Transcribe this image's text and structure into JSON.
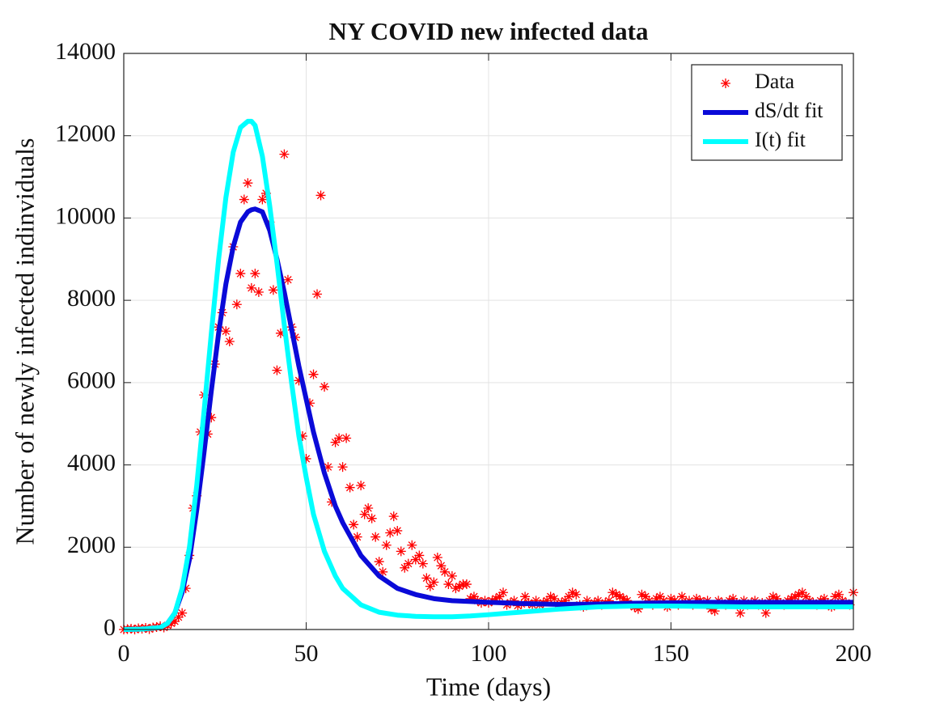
{
  "chart_data": {
    "type": "line",
    "title": "NY COVID new infected data",
    "xlabel": "Time (days)",
    "ylabel": "Number of newly infected indinviduals",
    "xlim": [
      0,
      200
    ],
    "xticks": [
      0,
      50,
      100,
      150,
      200
    ],
    "ylim": [
      0,
      14000
    ],
    "yticks": [
      0,
      2000,
      4000,
      6000,
      8000,
      10000,
      12000,
      14000
    ],
    "grid": true,
    "legend": "upper right",
    "series": [
      {
        "name": "Data",
        "type": "scatter",
        "color": "#ff0000",
        "x": [
          0,
          1,
          2,
          3,
          4,
          5,
          6,
          7,
          8,
          9,
          10,
          11,
          12,
          13,
          14,
          15,
          16,
          17,
          18,
          19,
          20,
          21,
          22,
          23,
          24,
          25,
          26,
          27,
          28,
          29,
          30,
          31,
          32,
          33,
          34,
          35,
          36,
          37,
          38,
          39,
          40,
          41,
          42,
          43,
          44,
          45,
          46,
          47,
          48,
          49,
          50,
          51,
          52,
          53,
          54,
          55,
          56,
          57,
          58,
          59,
          60,
          61,
          62,
          63,
          64,
          65,
          66,
          67,
          68,
          69,
          70,
          71,
          72,
          73,
          74,
          75,
          76,
          77,
          78,
          79,
          80,
          81,
          82,
          83,
          84,
          85,
          86,
          87,
          88,
          89,
          90,
          91,
          92,
          93,
          94,
          95,
          96,
          97,
          98,
          99,
          100,
          101,
          102,
          103,
          104,
          105,
          106,
          107,
          108,
          109,
          110,
          111,
          112,
          113,
          114,
          115,
          116,
          117,
          118,
          119,
          120,
          121,
          122,
          123,
          124,
          125,
          126,
          127,
          128,
          129,
          130,
          131,
          132,
          133,
          134,
          135,
          136,
          137,
          138,
          139,
          140,
          141,
          142,
          143,
          144,
          145,
          146,
          147,
          148,
          149,
          150,
          151,
          152,
          153,
          154,
          155,
          156,
          157,
          158,
          159,
          160,
          161,
          162,
          163,
          164,
          165,
          166,
          167,
          168,
          169,
          170,
          171,
          172,
          173,
          174,
          175,
          176,
          177,
          178,
          179,
          180,
          181,
          182,
          183,
          184,
          185,
          186,
          187,
          188,
          189,
          190,
          191,
          192,
          193,
          194,
          195,
          196,
          197,
          198,
          199,
          200
        ],
        "values": [
          0,
          10,
          20,
          0,
          30,
          20,
          40,
          10,
          50,
          60,
          80,
          50,
          100,
          150,
          200,
          300,
          400,
          1000,
          1800,
          2950,
          3250,
          4800,
          5700,
          4750,
          5150,
          6450,
          7350,
          7700,
          7250,
          7000,
          9300,
          7900,
          8650,
          10450,
          10850,
          8300,
          8650,
          8200,
          10450,
          10600,
          9900,
          8250,
          6300,
          7200,
          11550,
          8500,
          7350,
          7100,
          6050,
          4700,
          4150,
          5500,
          6200,
          8150,
          10550,
          5900,
          3950,
          3100,
          4550,
          4650,
          3950,
          4650,
          3450,
          2550,
          2250,
          3500,
          2800,
          2950,
          2700,
          2250,
          1650,
          1400,
          2050,
          2350,
          2750,
          2400,
          1900,
          1500,
          1600,
          2050,
          1700,
          1800,
          1600,
          1250,
          1050,
          1150,
          1750,
          1550,
          1400,
          1100,
          1300,
          1000,
          1050,
          1100,
          1100,
          750,
          800,
          700,
          650,
          700,
          650,
          700,
          750,
          800,
          900,
          600,
          650,
          700,
          580,
          620,
          800,
          650,
          600,
          700,
          600,
          650,
          700,
          800,
          750,
          600,
          650,
          700,
          800,
          900,
          850,
          600,
          550,
          700,
          600,
          650,
          700,
          600,
          650,
          700,
          900,
          850,
          800,
          750,
          700,
          600,
          550,
          500,
          850,
          800,
          700,
          600,
          750,
          800,
          700,
          550,
          750,
          700,
          600,
          800,
          650,
          700,
          600,
          750,
          700,
          650,
          700,
          500,
          450,
          700,
          650,
          600,
          700,
          750,
          650,
          400,
          700,
          600,
          650,
          700,
          600,
          650,
          400,
          700,
          800,
          750,
          650,
          600,
          700,
          750,
          800,
          850,
          900,
          800,
          700,
          650,
          600,
          700,
          750,
          650,
          550,
          800,
          850,
          700,
          650,
          600,
          900
        ]
      },
      {
        "name": "dS/dt fit",
        "type": "line",
        "color": "#0a0ad8",
        "x": [
          0,
          5,
          10,
          12,
          14,
          16,
          18,
          20,
          22,
          24,
          26,
          28,
          30,
          32,
          34,
          35,
          36,
          38,
          40,
          42,
          44,
          46,
          48,
          50,
          52,
          55,
          58,
          60,
          65,
          70,
          75,
          80,
          85,
          90,
          95,
          100,
          110,
          120,
          130,
          140,
          150,
          160,
          170,
          180,
          190,
          200
        ],
        "values": [
          0,
          10,
          50,
          150,
          400,
          900,
          1700,
          2900,
          4300,
          5800,
          7200,
          8400,
          9300,
          9900,
          10150,
          10200,
          10220,
          10150,
          9700,
          9000,
          8200,
          7300,
          6400,
          5600,
          4800,
          3800,
          3000,
          2600,
          1800,
          1300,
          1000,
          850,
          750,
          700,
          680,
          660,
          630,
          610,
          620,
          640,
          650,
          660,
          660,
          660,
          660,
          660
        ]
      },
      {
        "name": "I(t) fit",
        "type": "line",
        "color": "#00ffff",
        "x": [
          0,
          5,
          10,
          12,
          14,
          16,
          18,
          20,
          22,
          24,
          26,
          28,
          30,
          32,
          34,
          35,
          36,
          38,
          40,
          42,
          44,
          46,
          48,
          50,
          52,
          55,
          58,
          60,
          65,
          70,
          75,
          80,
          85,
          90,
          95,
          100,
          110,
          120,
          130,
          140,
          150,
          160,
          170,
          180,
          190,
          200
        ],
        "values": [
          0,
          10,
          50,
          150,
          400,
          1000,
          2000,
          3500,
          5300,
          7200,
          9000,
          10500,
          11600,
          12200,
          12350,
          12350,
          12250,
          11500,
          10300,
          8900,
          7400,
          6000,
          4700,
          3700,
          2800,
          1900,
          1300,
          1000,
          600,
          420,
          350,
          320,
          310,
          310,
          330,
          360,
          430,
          500,
          550,
          570,
          570,
          560,
          550,
          550,
          550,
          550
        ]
      }
    ]
  }
}
